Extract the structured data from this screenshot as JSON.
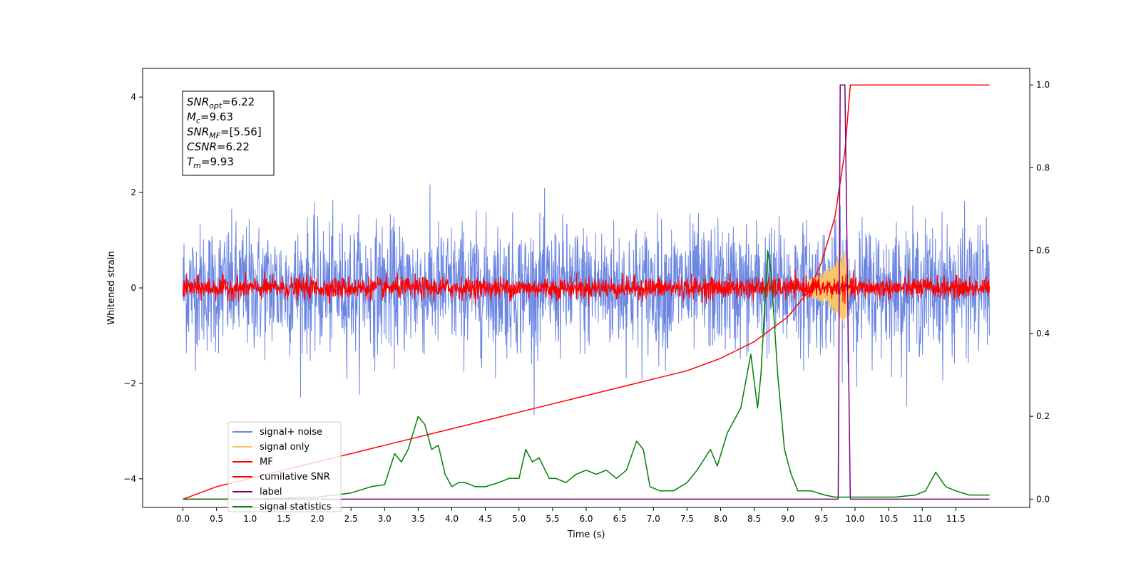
{
  "chart_data": {
    "type": "line",
    "xlabel": "Time (s)",
    "ylabel": "Whitened strain",
    "xlim": [
      -0.6,
      12.6
    ],
    "ylim": [
      -4.6,
      4.6
    ],
    "y2lim": [
      -0.02,
      1.04
    ],
    "x_ticks": [
      0.0,
      0.5,
      1.0,
      1.5,
      2.0,
      2.5,
      3.0,
      3.5,
      4.0,
      4.5,
      5.0,
      5.5,
      6.0,
      6.5,
      7.0,
      7.5,
      8.0,
      8.5,
      9.0,
      9.5,
      10.0,
      10.5,
      11.0,
      11.5
    ],
    "x_tick_labels": [
      "0.0",
      "0.5",
      "1.0",
      "1.5",
      "2.0",
      "2.5",
      "3.0",
      "3.5",
      "4.0",
      "4.5",
      "5.0",
      "5.5",
      "6.0",
      "6.5",
      "7.0",
      "7.5",
      "8.0",
      "8.5",
      "9.0",
      "9.5",
      "10.0",
      "10.5",
      "11.0",
      "11.5"
    ],
    "y_ticks": [
      -4,
      -2,
      0,
      2,
      4
    ],
    "y_tick_labels": [
      "−4",
      "−2",
      "0",
      "2",
      "4"
    ],
    "y2_ticks": [
      0.0,
      0.2,
      0.4,
      0.6,
      0.8,
      1.0
    ],
    "y2_tick_labels": [
      "0.0",
      "0.2",
      "0.4",
      "0.6",
      "0.8",
      "1.0"
    ],
    "grid": false,
    "legend_position": "lower-left",
    "annotation": {
      "lines": [
        {
          "sym": "SNR",
          "sub": "opt",
          "val": "=6.22"
        },
        {
          "sym": "M",
          "sub": "c",
          "val": "=9.63"
        },
        {
          "sym": "SNR",
          "sub": "MF",
          "val": "=[5.56]"
        },
        {
          "sym": "CSNR",
          "sub": "",
          "val": "=6.22"
        },
        {
          "sym": "T",
          "sub": "m",
          "val": "=9.93"
        }
      ]
    },
    "series": [
      {
        "name": "signal+ noise",
        "axis": "left",
        "color": "#6b86e2",
        "style": "noise",
        "amplitude": 1.2,
        "range": [
          0.0,
          12.0
        ]
      },
      {
        "name": "signal only",
        "axis": "left",
        "color": "#f5c66e",
        "style": "chirp",
        "x": [
          9.3,
          9.5,
          9.7,
          9.85,
          9.93
        ],
        "y": [
          0.15,
          0.3,
          0.5,
          0.8,
          0.0
        ]
      },
      {
        "name": "MF",
        "axis": "left",
        "color": "#ff0000",
        "style": "noise",
        "amplitude": 0.2,
        "range": [
          0.0,
          12.0
        ]
      },
      {
        "name": "cumilative SNR",
        "axis": "right",
        "color": "#ff0000",
        "x": [
          0.0,
          0.5,
          1.0,
          1.5,
          2.0,
          2.5,
          3.0,
          3.5,
          4.0,
          4.5,
          5.0,
          5.5,
          6.0,
          6.5,
          7.0,
          7.5,
          8.0,
          8.5,
          9.0,
          9.3,
          9.5,
          9.7,
          9.85,
          9.93,
          12.0
        ],
        "y": [
          0.0,
          0.03,
          0.05,
          0.07,
          0.09,
          0.11,
          0.13,
          0.15,
          0.17,
          0.19,
          0.21,
          0.23,
          0.25,
          0.27,
          0.29,
          0.31,
          0.34,
          0.38,
          0.44,
          0.5,
          0.57,
          0.68,
          0.84,
          1.0,
          1.0
        ]
      },
      {
        "name": "label",
        "axis": "right",
        "color": "#7b0080",
        "x": [
          0.0,
          9.75,
          9.78,
          9.85,
          9.93,
          12.0
        ],
        "y": [
          0.0,
          0.0,
          1.0,
          1.0,
          0.0,
          0.0
        ]
      },
      {
        "name": "signal statistics",
        "axis": "right",
        "color": "#008000",
        "x": [
          0.0,
          1.0,
          2.0,
          2.5,
          2.8,
          3.0,
          3.15,
          3.25,
          3.35,
          3.5,
          3.6,
          3.7,
          3.8,
          3.9,
          4.0,
          4.1,
          4.2,
          4.35,
          4.5,
          4.7,
          4.85,
          5.0,
          5.1,
          5.2,
          5.3,
          5.45,
          5.55,
          5.7,
          5.85,
          6.0,
          6.15,
          6.3,
          6.45,
          6.6,
          6.75,
          6.85,
          6.95,
          7.1,
          7.3,
          7.5,
          7.65,
          7.85,
          7.95,
          8.1,
          8.3,
          8.45,
          8.55,
          8.6,
          8.7,
          8.75,
          8.85,
          8.95,
          9.05,
          9.15,
          9.35,
          9.55,
          9.7,
          9.85,
          10.2,
          10.6,
          10.9,
          11.05,
          11.2,
          11.35,
          11.5,
          11.7,
          12.0
        ],
        "y": [
          0.0,
          0.0,
          0.005,
          0.015,
          0.03,
          0.035,
          0.11,
          0.09,
          0.12,
          0.2,
          0.18,
          0.12,
          0.13,
          0.06,
          0.03,
          0.04,
          0.04,
          0.03,
          0.03,
          0.04,
          0.05,
          0.05,
          0.12,
          0.09,
          0.1,
          0.05,
          0.05,
          0.04,
          0.06,
          0.07,
          0.06,
          0.07,
          0.05,
          0.07,
          0.14,
          0.12,
          0.03,
          0.02,
          0.02,
          0.04,
          0.07,
          0.12,
          0.08,
          0.16,
          0.22,
          0.35,
          0.22,
          0.3,
          0.6,
          0.55,
          0.3,
          0.12,
          0.06,
          0.02,
          0.02,
          0.01,
          0.005,
          0.005,
          0.005,
          0.005,
          0.01,
          0.02,
          0.065,
          0.03,
          0.02,
          0.01,
          0.01
        ]
      }
    ]
  }
}
